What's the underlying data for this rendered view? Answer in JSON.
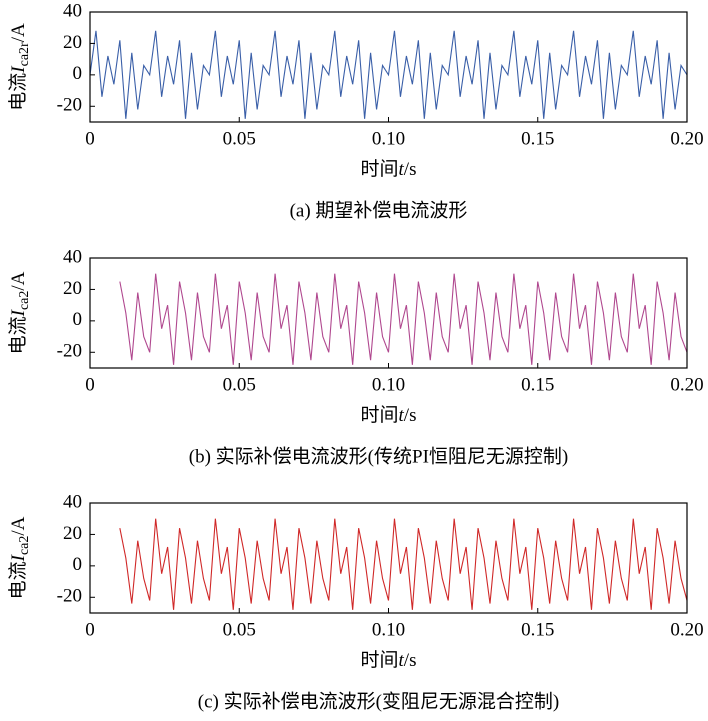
{
  "chart_data": [
    {
      "type": "line",
      "color": "#3a5fa8",
      "ylabel": {
        "prefix": "电流",
        "symbol": "I",
        "subscript": "ca2r",
        "suffix": "/A"
      },
      "xlabel": {
        "prefix": "时间",
        "symbol": "t",
        "suffix": "/s"
      },
      "caption": "(a) 期望补偿电流波形",
      "xlim": [
        0,
        0.2
      ],
      "ylim": [
        -30,
        40
      ],
      "xticks": [
        0,
        0.05,
        {
          "value": 0.1,
          "label": "0.10"
        },
        0.15,
        {
          "value": 0.2,
          "label": "0.20"
        }
      ],
      "yticks": [
        -20,
        0,
        20,
        40
      ],
      "x": [
        0,
        0.002,
        0.004,
        0.006,
        0.008,
        0.01,
        0.012,
        0.014,
        0.016,
        0.018,
        0.02,
        0.022,
        0.024,
        0.026,
        0.028,
        0.03,
        0.032,
        0.034,
        0.036,
        0.038,
        0.04,
        0.042,
        0.044,
        0.046,
        0.048,
        0.05,
        0.052,
        0.054,
        0.056,
        0.058,
        0.06,
        0.062,
        0.064,
        0.066,
        0.068,
        0.07,
        0.072,
        0.074,
        0.076,
        0.078,
        0.08,
        0.082,
        0.084,
        0.086,
        0.088,
        0.09,
        0.092,
        0.094,
        0.096,
        0.098,
        0.1,
        0.102,
        0.104,
        0.106,
        0.108,
        0.11,
        0.112,
        0.114,
        0.116,
        0.118,
        0.12,
        0.122,
        0.124,
        0.126,
        0.128,
        0.13,
        0.132,
        0.134,
        0.136,
        0.138,
        0.14,
        0.142,
        0.144,
        0.146,
        0.148,
        0.15,
        0.152,
        0.154,
        0.156,
        0.158,
        0.16,
        0.162,
        0.164,
        0.166,
        0.168,
        0.17,
        0.172,
        0.174,
        0.176,
        0.178,
        0.18,
        0.182,
        0.184,
        0.186,
        0.188,
        0.19,
        0.192,
        0.194,
        0.196,
        0.198,
        0.2
      ],
      "values": [
        0,
        28,
        -14,
        12,
        -6,
        22,
        -28,
        14,
        -22,
        6,
        0,
        28,
        -14,
        12,
        -6,
        22,
        -28,
        14,
        -22,
        6,
        0,
        28,
        -14,
        12,
        -6,
        22,
        -28,
        14,
        -22,
        6,
        0,
        28,
        -14,
        12,
        -6,
        22,
        -28,
        14,
        -22,
        6,
        0,
        28,
        -14,
        12,
        -6,
        22,
        -28,
        14,
        -22,
        6,
        0,
        28,
        -14,
        12,
        -6,
        22,
        -28,
        14,
        -22,
        6,
        0,
        28,
        -14,
        12,
        -6,
        22,
        -28,
        14,
        -22,
        6,
        0,
        28,
        -14,
        12,
        -6,
        22,
        -28,
        14,
        -22,
        6,
        0,
        28,
        -14,
        12,
        -6,
        22,
        -28,
        14,
        -22,
        6,
        0,
        28,
        -14,
        12,
        -6,
        22,
        -28,
        14,
        -22,
        6,
        0
      ]
    },
    {
      "type": "line",
      "color": "#b0488f",
      "ylabel": {
        "prefix": "电流",
        "symbol": "I",
        "subscript": "ca2",
        "suffix": "/A"
      },
      "xlabel": {
        "prefix": "时间",
        "symbol": "t",
        "suffix": "/s"
      },
      "caption": "(b) 实际补偿电流波形(传统PI恒阻尼无源控制)",
      "xlim": [
        0,
        0.2
      ],
      "ylim": [
        -30,
        40
      ],
      "xticks": [
        0,
        0.05,
        {
          "value": 0.1,
          "label": "0.10"
        },
        0.15,
        {
          "value": 0.2,
          "label": "0.20"
        }
      ],
      "yticks": [
        -20,
        0,
        20,
        40
      ],
      "x": [
        0,
        0.002,
        0.004,
        0.006,
        0.008,
        0.01,
        0.012,
        0.014,
        0.016,
        0.018,
        0.02,
        0.022,
        0.024,
        0.026,
        0.028,
        0.03,
        0.032,
        0.034,
        0.036,
        0.038,
        0.04,
        0.042,
        0.044,
        0.046,
        0.048,
        0.05,
        0.052,
        0.054,
        0.056,
        0.058,
        0.06,
        0.062,
        0.064,
        0.066,
        0.068,
        0.07,
        0.072,
        0.074,
        0.076,
        0.078,
        0.08,
        0.082,
        0.084,
        0.086,
        0.088,
        0.09,
        0.092,
        0.094,
        0.096,
        0.098,
        0.1,
        0.102,
        0.104,
        0.106,
        0.108,
        0.11,
        0.112,
        0.114,
        0.116,
        0.118,
        0.12,
        0.122,
        0.124,
        0.126,
        0.128,
        0.13,
        0.132,
        0.134,
        0.136,
        0.138,
        0.14,
        0.142,
        0.144,
        0.146,
        0.148,
        0.15,
        0.152,
        0.154,
        0.156,
        0.158,
        0.16,
        0.162,
        0.164,
        0.166,
        0.168,
        0.17,
        0.172,
        0.174,
        0.176,
        0.178,
        0.18,
        0.182,
        0.184,
        0.186,
        0.188,
        0.19,
        0.192,
        0.194,
        0.196,
        0.198,
        0.2
      ],
      "values": [
        null,
        null,
        null,
        null,
        null,
        25,
        5,
        -25,
        18,
        -10,
        -20,
        30,
        -5,
        10,
        -28,
        25,
        5,
        -25,
        18,
        -10,
        -20,
        30,
        -5,
        10,
        -28,
        25,
        5,
        -25,
        18,
        -10,
        -20,
        30,
        -5,
        10,
        -28,
        25,
        5,
        -25,
        18,
        -10,
        -20,
        30,
        -5,
        10,
        -28,
        25,
        5,
        -25,
        18,
        -10,
        -20,
        30,
        -5,
        10,
        -28,
        25,
        5,
        -25,
        18,
        -10,
        -20,
        30,
        -5,
        10,
        -28,
        25,
        5,
        -25,
        18,
        -10,
        -20,
        30,
        -5,
        10,
        -28,
        25,
        5,
        -25,
        18,
        -10,
        -20,
        30,
        -5,
        10,
        -28,
        25,
        5,
        -25,
        18,
        -10,
        -20,
        30,
        -5,
        10,
        -28,
        25,
        5,
        -25,
        18,
        -10,
        -20
      ]
    },
    {
      "type": "line",
      "color": "#d02828",
      "ylabel": {
        "prefix": "电流",
        "symbol": "I",
        "subscript": "ca2",
        "suffix": "/A"
      },
      "xlabel": {
        "prefix": "时间",
        "symbol": "t",
        "suffix": "/s"
      },
      "caption": "(c) 实际补偿电流波形(变阻尼无源混合控制)",
      "xlim": [
        0,
        0.2
      ],
      "ylim": [
        -30,
        40
      ],
      "xticks": [
        0,
        0.05,
        {
          "value": 0.1,
          "label": "0.10"
        },
        0.15,
        {
          "value": 0.2,
          "label": "0.20"
        }
      ],
      "yticks": [
        -20,
        0,
        20,
        40
      ],
      "x": [
        0,
        0.002,
        0.004,
        0.006,
        0.008,
        0.01,
        0.012,
        0.014,
        0.016,
        0.018,
        0.02,
        0.022,
        0.024,
        0.026,
        0.028,
        0.03,
        0.032,
        0.034,
        0.036,
        0.038,
        0.04,
        0.042,
        0.044,
        0.046,
        0.048,
        0.05,
        0.052,
        0.054,
        0.056,
        0.058,
        0.06,
        0.062,
        0.064,
        0.066,
        0.068,
        0.07,
        0.072,
        0.074,
        0.076,
        0.078,
        0.08,
        0.082,
        0.084,
        0.086,
        0.088,
        0.09,
        0.092,
        0.094,
        0.096,
        0.098,
        0.1,
        0.102,
        0.104,
        0.106,
        0.108,
        0.11,
        0.112,
        0.114,
        0.116,
        0.118,
        0.12,
        0.122,
        0.124,
        0.126,
        0.128,
        0.13,
        0.132,
        0.134,
        0.136,
        0.138,
        0.14,
        0.142,
        0.144,
        0.146,
        0.148,
        0.15,
        0.152,
        0.154,
        0.156,
        0.158,
        0.16,
        0.162,
        0.164,
        0.166,
        0.168,
        0.17,
        0.172,
        0.174,
        0.176,
        0.178,
        0.18,
        0.182,
        0.184,
        0.186,
        0.188,
        0.19,
        0.192,
        0.194,
        0.196,
        0.198,
        0.2
      ],
      "values": [
        null,
        null,
        null,
        null,
        null,
        24,
        5,
        -24,
        16,
        -8,
        -22,
        30,
        -5,
        12,
        -28,
        24,
        5,
        -24,
        16,
        -8,
        -22,
        30,
        -5,
        12,
        -28,
        24,
        5,
        -24,
        16,
        -8,
        -22,
        30,
        -5,
        12,
        -28,
        24,
        5,
        -24,
        16,
        -8,
        -22,
        30,
        -5,
        12,
        -28,
        24,
        5,
        -24,
        16,
        -8,
        -22,
        30,
        -5,
        12,
        -28,
        24,
        5,
        -24,
        16,
        -8,
        -22,
        30,
        -5,
        12,
        -28,
        24,
        5,
        -24,
        16,
        -8,
        -22,
        30,
        -5,
        12,
        -28,
        24,
        5,
        -24,
        16,
        -8,
        -22,
        30,
        -5,
        12,
        -28,
        24,
        5,
        -24,
        16,
        -8,
        -22,
        30,
        -5,
        12,
        -28,
        24,
        5,
        -24,
        16,
        -8,
        -22
      ]
    }
  ]
}
